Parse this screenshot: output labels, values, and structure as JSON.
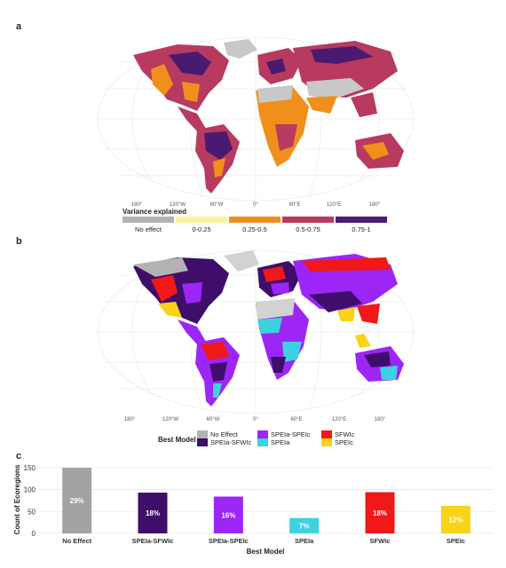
{
  "panels": {
    "a": "a",
    "b": "b",
    "c": "c"
  },
  "map_ticks": [
    "180°",
    "120°W",
    "60°W",
    "0°",
    "60°E",
    "120°E",
    "180°"
  ],
  "variance_legend": {
    "title": "Variance explained",
    "items": [
      {
        "label": "No effect",
        "color": "#b3b3b3"
      },
      {
        "label": "0-0.25",
        "color": "#fbf29e"
      },
      {
        "label": "0.25-0.5",
        "color": "#f0901c"
      },
      {
        "label": "0.5-0.75",
        "color": "#b83a5e"
      },
      {
        "label": "0.75-1",
        "color": "#4a1a70"
      }
    ]
  },
  "best_model_legend": {
    "title": "Best Model",
    "items": [
      {
        "label": "No Effect",
        "color": "#b3b3b3"
      },
      {
        "label": "SPEIa-SFWIc",
        "color": "#3f0e6b"
      },
      {
        "label": "SPEIa-SPEIc",
        "color": "#9b26f5"
      },
      {
        "label": "SPEIa",
        "color": "#3ed1e0"
      },
      {
        "label": "SFWIc",
        "color": "#f01818"
      },
      {
        "label": "SPEIc",
        "color": "#f7d31a"
      }
    ]
  },
  "chart_data": {
    "type": "bar",
    "categories": [
      "No Effect",
      "SPEIa-SFWIc",
      "SPEIa-SPEIc",
      "SPEIa",
      "SFWIc",
      "SPEIc"
    ],
    "values": [
      150,
      93,
      84,
      35,
      94,
      63
    ],
    "labels": [
      "29%",
      "18%",
      "16%",
      "7%",
      "18%",
      "12%"
    ],
    "colors": [
      "#a3a3a3",
      "#3f0e6b",
      "#9b26f5",
      "#3ed1e0",
      "#f01818",
      "#f7d31a"
    ],
    "xlabel": "Best Model",
    "ylabel": "Count of Ecoregions",
    "ylim": [
      0,
      160
    ],
    "yticks": [
      0,
      50,
      100,
      150
    ]
  }
}
